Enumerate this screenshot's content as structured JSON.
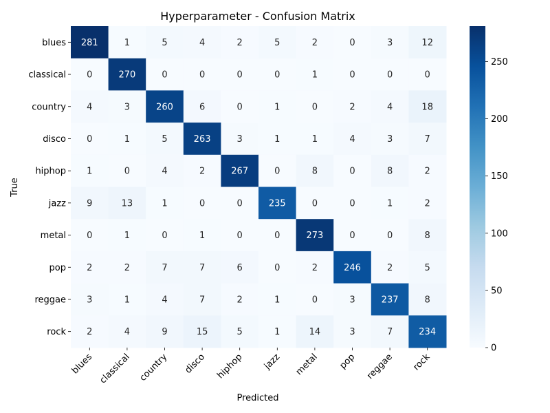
{
  "chart_data": {
    "type": "heatmap",
    "title": "Hyperparameter - Confusion Matrix",
    "xlabel": "Predicted",
    "ylabel": "True",
    "x_categories": [
      "blues",
      "classical",
      "country",
      "disco",
      "hiphop",
      "jazz",
      "metal",
      "pop",
      "reggae",
      "rock"
    ],
    "y_categories": [
      "blues",
      "classical",
      "country",
      "disco",
      "hiphop",
      "jazz",
      "metal",
      "pop",
      "reggae",
      "rock"
    ],
    "values": [
      [
        281,
        1,
        5,
        4,
        2,
        5,
        2,
        0,
        3,
        12
      ],
      [
        0,
        270,
        0,
        0,
        0,
        0,
        1,
        0,
        0,
        0
      ],
      [
        4,
        3,
        260,
        6,
        0,
        1,
        0,
        2,
        4,
        18
      ],
      [
        0,
        1,
        5,
        263,
        3,
        1,
        1,
        4,
        3,
        7
      ],
      [
        1,
        0,
        4,
        2,
        267,
        0,
        8,
        0,
        8,
        2
      ],
      [
        9,
        13,
        1,
        0,
        0,
        235,
        0,
        0,
        1,
        2
      ],
      [
        0,
        1,
        0,
        1,
        0,
        0,
        273,
        0,
        0,
        8
      ],
      [
        2,
        2,
        7,
        7,
        6,
        0,
        2,
        246,
        2,
        5
      ],
      [
        3,
        1,
        4,
        7,
        2,
        1,
        0,
        3,
        237,
        8
      ],
      [
        2,
        4,
        9,
        15,
        5,
        1,
        14,
        3,
        7,
        234
      ]
    ],
    "colormap": "Blues",
    "colorbar": {
      "range": [
        0,
        281
      ],
      "ticks": [
        0,
        50,
        100,
        150,
        200,
        250
      ]
    },
    "annotations": true
  }
}
